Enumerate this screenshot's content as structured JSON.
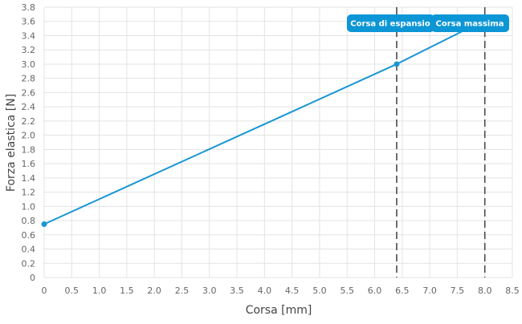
{
  "chart_data": {
    "type": "line",
    "xlabel": "Corsa [mm]",
    "ylabel": "Forza elastica [N]",
    "xlim": [
      0,
      8.5
    ],
    "ylim": [
      0,
      3.8
    ],
    "x_ticks": [
      "0",
      "0.5",
      "1.0",
      "1.5",
      "2.0",
      "2.5",
      "3.0",
      "3.5",
      "4.0",
      "4.5",
      "5.0",
      "5.5",
      "6.0",
      "6.5",
      "7.0",
      "7.5",
      "8.0",
      "8.5"
    ],
    "y_ticks": [
      "0",
      "0.2",
      "0.4",
      "0.6",
      "0.8",
      "1.0",
      "1.2",
      "1.4",
      "1.6",
      "1.8",
      "2.0",
      "2.2",
      "2.4",
      "2.6",
      "2.8",
      "3.0",
      "3.2",
      "3.4",
      "3.6",
      "3.8"
    ],
    "grid": true,
    "series": [
      {
        "x": [
          0,
          6.4,
          8.0
        ],
        "y": [
          0.75,
          3.0,
          3.62
        ],
        "markers": [
          0,
          6.4
        ]
      }
    ],
    "annotations": [
      {
        "label": "Corsa di espansio",
        "x": 6.4
      },
      {
        "label": "Corsa massima",
        "x": 8.0
      }
    ],
    "colors": {
      "line": "#1a96d4",
      "badge": "#0d96d6",
      "guide": "#4a4a4a"
    }
  }
}
